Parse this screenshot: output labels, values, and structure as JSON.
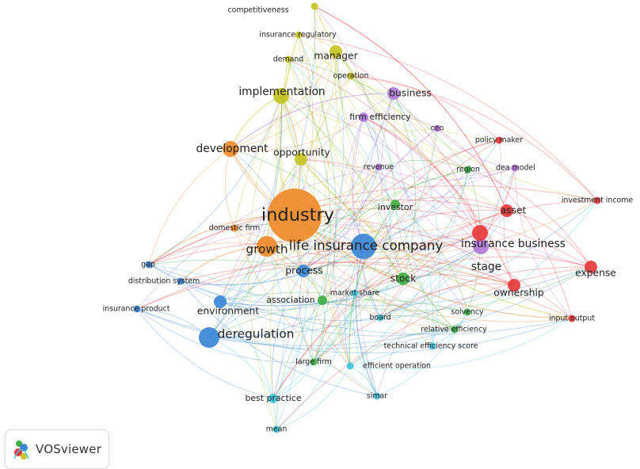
{
  "app": {
    "badge_label": "VOSviewer"
  },
  "clusters": {
    "red": "#e8393b",
    "green": "#3fb044",
    "blue": "#3b87d6",
    "yellow": "#c5c423",
    "purple": "#b27ad8",
    "cyan": "#43c4dc",
    "orange": "#ef8a2a"
  },
  "terms": [
    {
      "id": "industry",
      "label": "industry",
      "cluster": "orange",
      "weight": 10
    },
    {
      "id": "growth",
      "label": "growth",
      "cluster": "orange",
      "weight": 5
    },
    {
      "id": "development",
      "label": "development",
      "cluster": "orange",
      "weight": 4
    },
    {
      "id": "domestic_firm",
      "label": "domestic firm",
      "cluster": "orange",
      "weight": 1
    },
    {
      "id": "life_insurance_company",
      "label": "life insurance company",
      "cluster": "blue",
      "weight": 6
    },
    {
      "id": "deregulation",
      "label": "deregulation",
      "cluster": "blue",
      "weight": 5
    },
    {
      "id": "environment",
      "label": "environment",
      "cluster": "blue",
      "weight": 3
    },
    {
      "id": "process",
      "label": "process",
      "cluster": "blue",
      "weight": 3
    },
    {
      "id": "gap",
      "label": "gap",
      "cluster": "blue",
      "weight": 1
    },
    {
      "id": "distribution_system",
      "label": "distribution system",
      "cluster": "blue",
      "weight": 1
    },
    {
      "id": "insurance_product",
      "label": "insurance product",
      "cluster": "blue",
      "weight": 1
    },
    {
      "id": "implementation",
      "label": "implementation",
      "cluster": "yellow",
      "weight": 4
    },
    {
      "id": "manager",
      "label": "manager",
      "cluster": "yellow",
      "weight": 3
    },
    {
      "id": "opportunity",
      "label": "opportunity",
      "cluster": "yellow",
      "weight": 3
    },
    {
      "id": "competitiveness",
      "label": "competitiveness",
      "cluster": "yellow",
      "weight": 1
    },
    {
      "id": "insurance_regulatory",
      "label": "insurance regulatory",
      "cluster": "yellow",
      "weight": 1
    },
    {
      "id": "demand",
      "label": "demand",
      "cluster": "yellow",
      "weight": 1
    },
    {
      "id": "operation",
      "label": "operation",
      "cluster": "yellow",
      "weight": 1
    },
    {
      "id": "business",
      "label": "business",
      "cluster": "purple",
      "weight": 3
    },
    {
      "id": "firm_efficiency",
      "label": "firm efficiency",
      "cluster": "purple",
      "weight": 2
    },
    {
      "id": "ceo",
      "label": "ceo",
      "cluster": "purple",
      "weight": 1
    },
    {
      "id": "revenue",
      "label": "revenue",
      "cluster": "purple",
      "weight": 1
    },
    {
      "id": "dea_model",
      "label": "dea model",
      "cluster": "purple",
      "weight": 1
    },
    {
      "id": "stage",
      "label": "stage",
      "cluster": "purple",
      "weight": 4
    },
    {
      "id": "insurance_business",
      "label": "insurance business",
      "cluster": "red",
      "weight": 4
    },
    {
      "id": "asset",
      "label": "asset",
      "cluster": "red",
      "weight": 3
    },
    {
      "id": "policy_maker",
      "label": "policy maker",
      "cluster": "red",
      "weight": 1
    },
    {
      "id": "investment_income",
      "label": "investment income",
      "cluster": "red",
      "weight": 1
    },
    {
      "id": "expense",
      "label": "expense",
      "cluster": "red",
      "weight": 3
    },
    {
      "id": "ownership",
      "label": "ownership",
      "cluster": "red",
      "weight": 3
    },
    {
      "id": "input_output",
      "label": "input output",
      "cluster": "red",
      "weight": 1
    },
    {
      "id": "investor",
      "label": "investor",
      "cluster": "green",
      "weight": 2
    },
    {
      "id": "region",
      "label": "region",
      "cluster": "green",
      "weight": 1
    },
    {
      "id": "stock",
      "label": "stock",
      "cluster": "green",
      "weight": 3
    },
    {
      "id": "solvency",
      "label": "solvency",
      "cluster": "green",
      "weight": 1
    },
    {
      "id": "relative_efficiency",
      "label": "relative efficiency",
      "cluster": "green",
      "weight": 1
    },
    {
      "id": "association",
      "label": "association",
      "cluster": "green",
      "weight": 2
    },
    {
      "id": "large_firm",
      "label": "large firm",
      "cluster": "green",
      "weight": 1
    },
    {
      "id": "market_share",
      "label": "market share",
      "cluster": "cyan",
      "weight": 1
    },
    {
      "id": "board",
      "label": "board",
      "cluster": "cyan",
      "weight": 1
    },
    {
      "id": "technical_efficiency_score",
      "label": "technical efficiency score",
      "cluster": "cyan",
      "weight": 1
    },
    {
      "id": "efficient_operation",
      "label": "efficient operation",
      "cluster": "cyan",
      "weight": 1
    },
    {
      "id": "best_practice",
      "label": "best practice",
      "cluster": "cyan",
      "weight": 2
    },
    {
      "id": "simar",
      "label": "simar",
      "cluster": "cyan",
      "weight": 1
    },
    {
      "id": "mean",
      "label": "mean",
      "cluster": "cyan",
      "weight": 1
    }
  ]
}
